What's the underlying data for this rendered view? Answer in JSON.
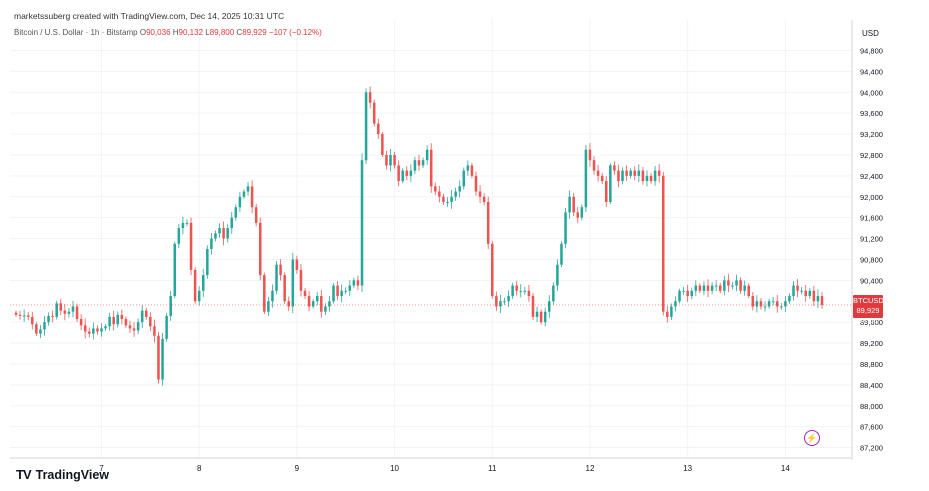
{
  "header": {
    "credit": "marketssuberg created with TradingView.com, Dec 14, 2025 10:31 UTC",
    "symbol": "Bitcoin / U.S. Dollar · 1h · Bitstamp",
    "ohlc": [
      {
        "label": "O",
        "value": "90,036"
      },
      {
        "label": "H",
        "value": "90,132"
      },
      {
        "label": "L",
        "value": "89,800"
      },
      {
        "label": "C",
        "value": "89,929"
      },
      {
        "label": "",
        "value": "−107 (−0.12%)"
      }
    ]
  },
  "chart_data": {
    "type": "candlestick",
    "unit": "USD",
    "ylim": [
      87000,
      95000
    ],
    "y_ticks": [
      87200,
      87600,
      88000,
      88400,
      88800,
      89200,
      89600,
      90400,
      90800,
      91200,
      91600,
      92000,
      92400,
      92800,
      93200,
      93600,
      94000,
      94400,
      94800
    ],
    "y_tick_labels": [
      "87,200",
      "87,600",
      "88,000",
      "88,400",
      "88,800",
      "89,200",
      "89,600",
      "90,400",
      "90,800",
      "91,200",
      "91,600",
      "92,000",
      "92,400",
      "92,800",
      "93,200",
      "93,600",
      "94,000",
      "94,400",
      "94,800"
    ],
    "x_labels": [
      {
        "label": "7",
        "index": 21
      },
      {
        "label": "8",
        "index": 45
      },
      {
        "label": "9",
        "index": 69
      },
      {
        "label": "10",
        "index": 93
      },
      {
        "label": "11",
        "index": 117
      },
      {
        "label": "12",
        "index": 141
      },
      {
        "label": "13",
        "index": 165
      },
      {
        "label": "14",
        "index": 189
      }
    ],
    "closes": [
      89740,
      89720,
      89730,
      89700,
      89560,
      89380,
      89460,
      89600,
      89720,
      89700,
      89960,
      89820,
      89760,
      89800,
      89900,
      89660,
      89540,
      89420,
      89380,
      89480,
      89420,
      89480,
      89520,
      89700,
      89560,
      89740,
      89660,
      89540,
      89480,
      89440,
      89600,
      89820,
      89700,
      89520,
      89340,
      88500,
      89280,
      89720,
      90100,
      91100,
      91400,
      91500,
      91500,
      90600,
      90000,
      90200,
      90500,
      91000,
      91200,
      91300,
      91400,
      91200,
      91400,
      91600,
      91800,
      92000,
      92100,
      92200,
      91800,
      91500,
      90500,
      89800,
      90000,
      90200,
      90700,
      90500,
      90000,
      89900,
      90800,
      90600,
      90200,
      90100,
      89900,
      90000,
      90100,
      89800,
      89900,
      90000,
      90300,
      90100,
      90200,
      90200,
      90300,
      90400,
      90300,
      92700,
      94000,
      93800,
      93400,
      93200,
      92800,
      92600,
      92800,
      92600,
      92300,
      92500,
      92400,
      92500,
      92700,
      92600,
      92700,
      92900,
      92200,
      92100,
      92000,
      91900,
      91900,
      92000,
      92100,
      92200,
      92500,
      92600,
      92400,
      92100,
      92000,
      91900,
      91100,
      90100,
      89900,
      90000,
      90000,
      90100,
      90300,
      90200,
      90200,
      90200,
      90100,
      89700,
      89800,
      89600,
      89800,
      90000,
      90300,
      90700,
      91100,
      91700,
      92000,
      91700,
      91600,
      91800,
      92900,
      92700,
      92500,
      92400,
      92300,
      91900,
      92600,
      92500,
      92300,
      92500,
      92400,
      92500,
      92400,
      92500,
      92300,
      92400,
      92300,
      92500,
      92400,
      89800,
      89700,
      89900,
      90000,
      90200,
      90200,
      90100,
      90200,
      90300,
      90200,
      90300,
      90200,
      90300,
      90300,
      90200,
      90400,
      90300,
      90300,
      90400,
      90200,
      90300,
      90100,
      89900,
      90000,
      89900,
      89900,
      90000,
      90000,
      89900,
      89900,
      90000,
      90100,
      90300,
      90200,
      90200,
      90100,
      90200,
      90000,
      90100,
      89929
    ],
    "last_price": {
      "symbol": "BTCUSD",
      "value": "89,929",
      "countdown": "28:06"
    }
  },
  "footer": {
    "logo": "TV",
    "brand": "TradingView"
  },
  "colors": {
    "up": "#26a69a",
    "down": "#ef5350",
    "grid": "#f0f3fa",
    "axis_text": "#131722"
  }
}
